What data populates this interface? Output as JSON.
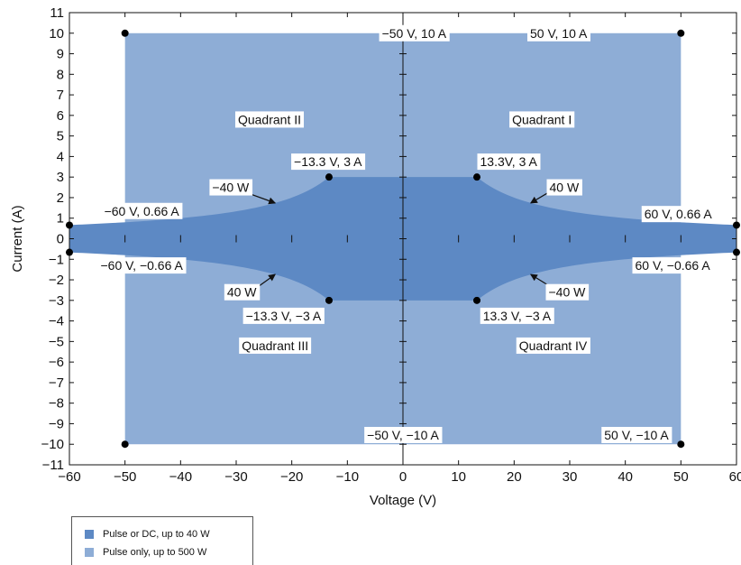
{
  "chart_data": {
    "type": "area",
    "title": "",
    "xlabel": "Voltage (V)",
    "ylabel": "Current (A)",
    "xlim": [
      -60,
      60
    ],
    "ylim": [
      -11,
      11
    ],
    "xticks": [
      -60,
      -50,
      -40,
      -30,
      -20,
      -10,
      0,
      10,
      20,
      30,
      40,
      50,
      60
    ],
    "xtick_labels": [
      "−60",
      "−50",
      "−40",
      "−30",
      "−20",
      "−10",
      "0",
      "10",
      "20",
      "30",
      "40",
      "50",
      "60"
    ],
    "yticks": [
      -11,
      -10,
      -9,
      -8,
      -7,
      -6,
      -5,
      -4,
      -3,
      -2,
      -1,
      0,
      1,
      2,
      3,
      4,
      5,
      6,
      7,
      8,
      9,
      10,
      11
    ],
    "ytick_labels": [
      "−11",
      "−10",
      "−9",
      "−8",
      "−7",
      "−6",
      "−5",
      "−4",
      "−3",
      "−2",
      "−1",
      "0",
      "1",
      "2",
      "3",
      "4",
      "5",
      "6",
      "7",
      "8",
      "9",
      "10",
      "11"
    ],
    "grid": false,
    "series": [
      {
        "name": "Pulse only, up to 500 W",
        "color": "#8eadd6",
        "region": {
          "x": [
            -50,
            50
          ],
          "y": [
            -10,
            10
          ]
        }
      },
      {
        "name": "Pulse or DC, up to 40 W",
        "color": "#5d89c4",
        "region": {
          "power_limit_w": 40,
          "current_limit_a": 3,
          "voltage_limit_v": 60
        }
      }
    ],
    "points": [
      {
        "x": -50,
        "y": 10,
        "label": "−50 V, 10 A",
        "lx": 2,
        "ly": 10
      },
      {
        "x": 50,
        "y": 10,
        "label": "50 V, 10 A",
        "lx": 28,
        "ly": 10
      },
      {
        "x": -13.3,
        "y": 3,
        "label": "−13.3 V, 3 A",
        "lx": -13.5,
        "ly": 3.75
      },
      {
        "x": 13.3,
        "y": 3,
        "label": "13.3V, 3 A",
        "lx": 19,
        "ly": 3.75
      },
      {
        "x": -60,
        "y": 0.66,
        "label": "−60 V, 0.66 A",
        "lx": -47,
        "ly": 1.35
      },
      {
        "x": 60,
        "y": 0.66,
        "label": "60 V, 0.66 A",
        "lx": 49.5,
        "ly": 1.2
      },
      {
        "x": -60,
        "y": -0.66,
        "label": "−60 V, −0.66 A",
        "lx": -47,
        "ly": -1.3
      },
      {
        "x": 60,
        "y": -0.66,
        "label": "60 V, −0.66 A",
        "lx": 48.5,
        "ly": -1.3
      },
      {
        "x": -13.3,
        "y": -3,
        "label": "−13.3 V, −3 A",
        "lx": -21.5,
        "ly": -3.75
      },
      {
        "x": 13.3,
        "y": -3,
        "label": "13.3 V, −3 A",
        "lx": 20.5,
        "ly": -3.75
      },
      {
        "x": -50,
        "y": -10,
        "label": "−50 V, −10 A",
        "lx": 0,
        "ly": -9.55
      },
      {
        "x": 50,
        "y": -10,
        "label": "50 V, −10 A",
        "lx": 42,
        "ly": -9.55
      }
    ],
    "annotations": [
      {
        "text": "Quadrant I",
        "x": 25,
        "y": 5.8,
        "kind": "label"
      },
      {
        "text": "Quadrant II",
        "x": -24,
        "y": 5.8,
        "kind": "label"
      },
      {
        "text": "Quadrant III",
        "x": -23,
        "y": -5.2,
        "kind": "label"
      },
      {
        "text": "Quadrant IV",
        "x": 27,
        "y": -5.2,
        "kind": "label"
      },
      {
        "text": "40 W",
        "x": 29,
        "y": 2.5,
        "kind": "arrow",
        "ax": 23,
        "ay": 1.74
      },
      {
        "text": "−40 W",
        "x": -31,
        "y": 2.5,
        "kind": "arrow",
        "ax": -23,
        "ay": 1.74
      },
      {
        "text": "40 W",
        "x": -29,
        "y": -2.6,
        "kind": "arrow",
        "ax": -23,
        "ay": -1.74
      },
      {
        "text": "−40 W",
        "x": 29.5,
        "y": -2.6,
        "kind": "arrow",
        "ax": 23,
        "ay": -1.74
      }
    ],
    "legend": "bottom-left"
  }
}
